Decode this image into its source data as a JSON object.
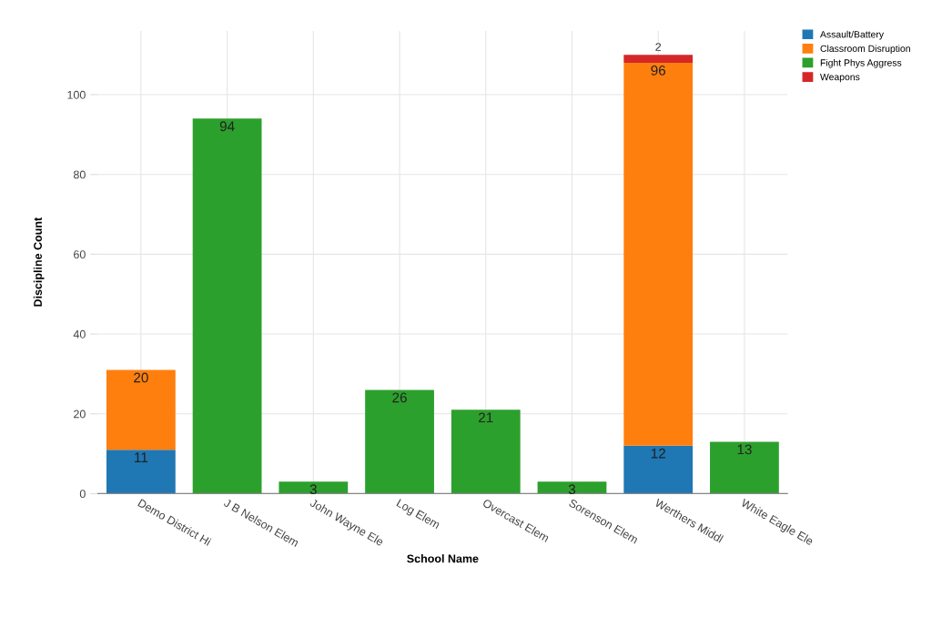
{
  "chart_data": {
    "type": "bar",
    "stacked": true,
    "xlabel": "School Name",
    "ylabel": "Discipline Count",
    "categories": [
      "Demo District Hi",
      "J B Nelson Elem",
      "John Wayne Ele",
      "Log Elem",
      "Overcast Elem",
      "Sorenson Elem",
      "Werthers Middl",
      "White Eagle Ele"
    ],
    "series": [
      {
        "name": "Assault/Battery",
        "color": "#1f77b4",
        "values": [
          11,
          null,
          null,
          null,
          null,
          null,
          12,
          null
        ]
      },
      {
        "name": "Classroom Disruption",
        "color": "#ff7f0e",
        "values": [
          20,
          null,
          null,
          null,
          null,
          null,
          96,
          null
        ]
      },
      {
        "name": "Fight Phys Aggress",
        "color": "#2ca02c",
        "values": [
          null,
          94,
          3,
          26,
          21,
          3,
          null,
          13
        ]
      },
      {
        "name": "Weapons",
        "color": "#d62728",
        "values": [
          null,
          null,
          null,
          null,
          null,
          null,
          2,
          null
        ]
      }
    ],
    "ylim": [
      0,
      116
    ],
    "yticks": [
      0,
      20,
      40,
      60,
      80,
      100
    ],
    "grid": true,
    "legend": "top right",
    "data_labels": true
  }
}
